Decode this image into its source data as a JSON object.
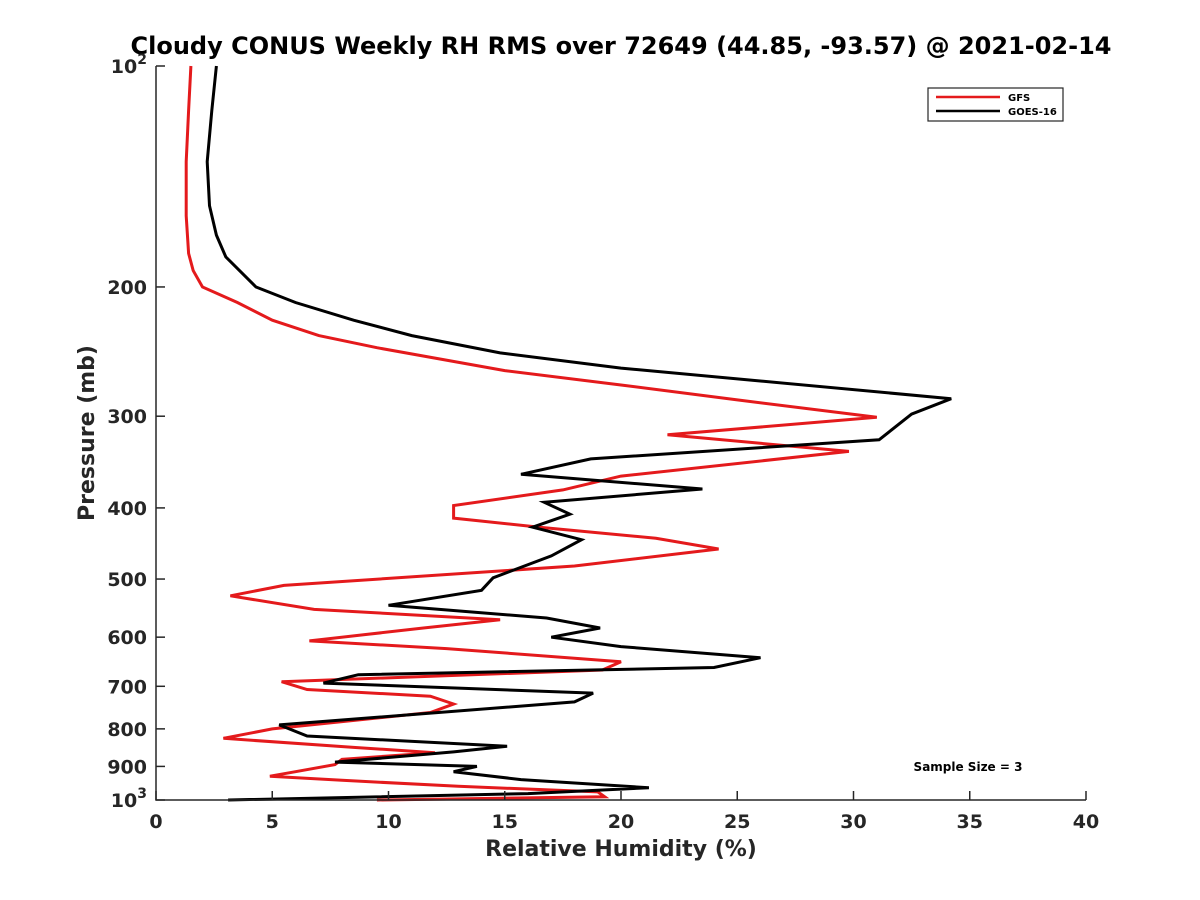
{
  "chart_data": {
    "type": "line",
    "title": "Cloudy CONUS Weekly RH RMS over 72649 (44.85, -93.57) @ 2021-02-14",
    "xlabel": "Relative Humidity (%)",
    "ylabel": "Pressure (mb)",
    "xlim": [
      0,
      40
    ],
    "ylim": [
      100,
      1000
    ],
    "y_scale": "log",
    "y_reversed": true,
    "x_ticks": [
      0,
      5,
      10,
      15,
      20,
      25,
      30,
      35,
      40
    ],
    "y_ticks": [
      {
        "value": 100,
        "base": "10",
        "exp": "2"
      },
      {
        "value": 200,
        "label": "200"
      },
      {
        "value": 300,
        "label": "300"
      },
      {
        "value": 400,
        "label": "400"
      },
      {
        "value": 500,
        "label": "500"
      },
      {
        "value": 600,
        "label": "600"
      },
      {
        "value": 700,
        "label": "700"
      },
      {
        "value": 800,
        "label": "800"
      },
      {
        "value": 900,
        "label": "900"
      },
      {
        "value": 1000,
        "base": "10",
        "exp": "3"
      }
    ],
    "grid": false,
    "legend_position": "top-right",
    "annotation": "Sample Size = 3",
    "series": [
      {
        "name": "GFS",
        "color": "#e41a1c",
        "points": [
          [
            1.5,
            100
          ],
          [
            1.4,
            115
          ],
          [
            1.3,
            135
          ],
          [
            1.3,
            160
          ],
          [
            1.4,
            180
          ],
          [
            1.6,
            190
          ],
          [
            2.0,
            200
          ],
          [
            3.5,
            210
          ],
          [
            5.0,
            222
          ],
          [
            7.0,
            233
          ],
          [
            9.5,
            242
          ],
          [
            15.0,
            260
          ],
          [
            20.0,
            272
          ],
          [
            25.0,
            285
          ],
          [
            31.0,
            301
          ],
          [
            22.0,
            318
          ],
          [
            29.8,
            335
          ],
          [
            20.0,
            362
          ],
          [
            17.5,
            378
          ],
          [
            12.8,
            397
          ],
          [
            12.8,
            413
          ],
          [
            16.5,
            425
          ],
          [
            21.5,
            440
          ],
          [
            24.2,
            455
          ],
          [
            18.0,
            480
          ],
          [
            5.5,
            510
          ],
          [
            3.2,
            527
          ],
          [
            6.8,
            550
          ],
          [
            14.8,
            568
          ],
          [
            11.5,
            583
          ],
          [
            6.6,
            607
          ],
          [
            12.5,
            622
          ],
          [
            20.0,
            648
          ],
          [
            19.2,
            665
          ],
          [
            5.4,
            690
          ],
          [
            6.5,
            707
          ],
          [
            11.8,
            722
          ],
          [
            12.8,
            740
          ],
          [
            11.8,
            760
          ],
          [
            5.0,
            800
          ],
          [
            2.9,
            824
          ],
          [
            8.5,
            848
          ],
          [
            12.0,
            862
          ],
          [
            8.0,
            880
          ],
          [
            7.7,
            895
          ],
          [
            6.0,
            915
          ],
          [
            4.9,
            928
          ],
          [
            8.0,
            940
          ],
          [
            13.0,
            958
          ],
          [
            19.0,
            975
          ],
          [
            19.3,
            990
          ],
          [
            9.5,
            1000
          ]
        ]
      },
      {
        "name": "GOES-16",
        "color": "#000000",
        "points": [
          [
            2.6,
            100
          ],
          [
            2.4,
            115
          ],
          [
            2.2,
            135
          ],
          [
            2.3,
            155
          ],
          [
            2.6,
            170
          ],
          [
            3.0,
            182
          ],
          [
            4.3,
            200
          ],
          [
            6.0,
            210
          ],
          [
            8.5,
            222
          ],
          [
            11.0,
            233
          ],
          [
            14.8,
            246
          ],
          [
            20.0,
            258
          ],
          [
            34.2,
            284
          ],
          [
            32.5,
            298
          ],
          [
            31.1,
            323
          ],
          [
            18.7,
            343
          ],
          [
            15.7,
            360
          ],
          [
            23.5,
            377
          ],
          [
            16.7,
            393
          ],
          [
            17.8,
            408
          ],
          [
            16.2,
            425
          ],
          [
            18.3,
            442
          ],
          [
            17.0,
            465
          ],
          [
            14.5,
            498
          ],
          [
            14.0,
            518
          ],
          [
            10.0,
            543
          ],
          [
            16.8,
            565
          ],
          [
            19.1,
            583
          ],
          [
            17.0,
            600
          ],
          [
            20.0,
            618
          ],
          [
            26.0,
            640
          ],
          [
            24.0,
            660
          ],
          [
            8.7,
            675
          ],
          [
            7.2,
            693
          ],
          [
            18.8,
            715
          ],
          [
            18.0,
            735
          ],
          [
            5.3,
            790
          ],
          [
            6.5,
            818
          ],
          [
            15.1,
            845
          ],
          [
            12.8,
            860
          ],
          [
            7.7,
            888
          ],
          [
            13.8,
            900
          ],
          [
            12.8,
            915
          ],
          [
            15.7,
            938
          ],
          [
            21.2,
            962
          ],
          [
            16.0,
            980
          ],
          [
            3.1,
            1000
          ]
        ]
      }
    ]
  }
}
